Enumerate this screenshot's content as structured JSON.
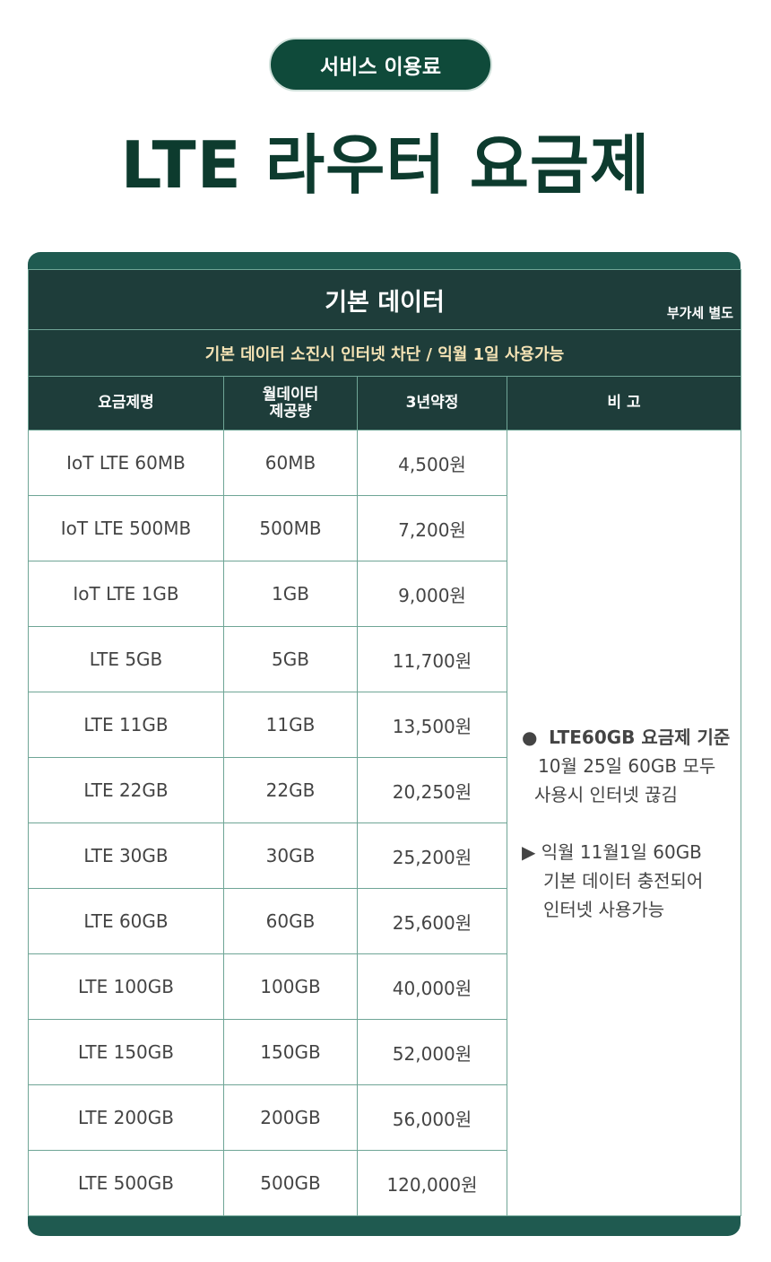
{
  "badge": "서비스 이용료",
  "title": "LTE 라우터 요금제",
  "table": {
    "header": "기본 데이터",
    "vat": "부가세 별도",
    "subheader": "기본 데이터 소진시 인터넷 차단 / 익월 1일 사용가능",
    "columns": [
      "요금제명",
      "월데이터\n제공량",
      "3년약정",
      "비 고"
    ],
    "rows": [
      [
        "IoT LTE 60MB",
        "60MB",
        "4,500원"
      ],
      [
        "IoT LTE 500MB",
        "500MB",
        "7,200원"
      ],
      [
        "IoT LTE 1GB",
        "1GB",
        "9,000원"
      ],
      [
        "LTE 5GB",
        "5GB",
        "11,700원"
      ],
      [
        "LTE 11GB",
        "11GB",
        "13,500원"
      ],
      [
        "LTE 22GB",
        "22GB",
        "20,250원"
      ],
      [
        "LTE 30GB",
        "30GB",
        "25,200원"
      ],
      [
        "LTE 60GB",
        "60GB",
        "25,600원"
      ],
      [
        "LTE 100GB",
        "100GB",
        "40,000원"
      ],
      [
        "LTE 150GB",
        "150GB",
        "52,000원"
      ],
      [
        "LTE 200GB",
        "200GB",
        "56,000원"
      ],
      [
        "LTE 500GB",
        "500GB",
        "120,000원"
      ]
    ],
    "note": {
      "bullet1_title": "LTE60GB 요금제 기준",
      "bullet1_line1": "10월 25일 60GB 모두",
      "bullet1_line2": "사용시 인터넷 끊김",
      "bullet2_line1": "익월 11월1일 60GB",
      "bullet2_line2": "기본 데이터 충전되어",
      "bullet2_line3": "인터넷 사용가능"
    }
  },
  "colors": {
    "primary": "#0f4a3a",
    "header_bg": "#1e3d3a",
    "band": "#1f5a50",
    "sub_text": "#f5e3b5"
  }
}
